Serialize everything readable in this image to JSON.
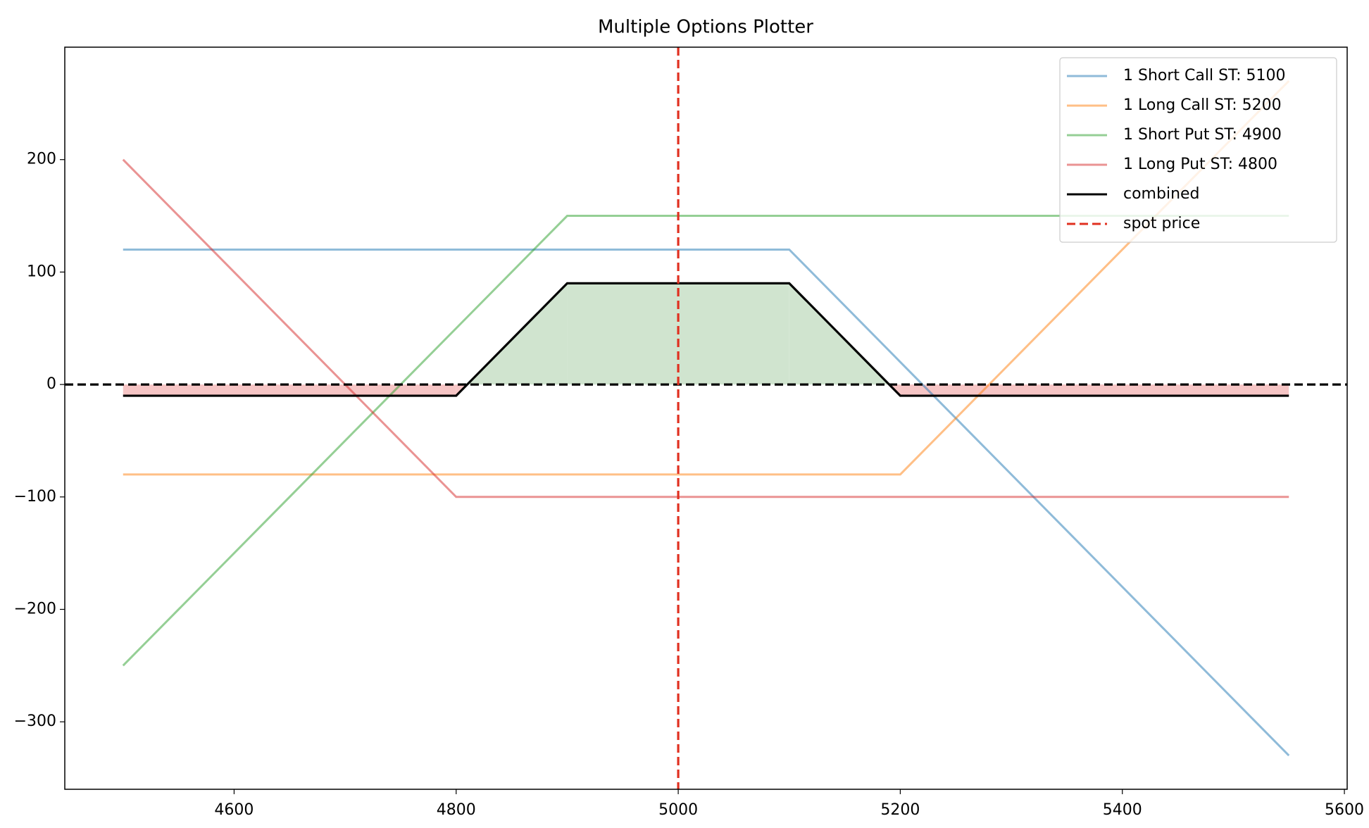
{
  "chart_data": {
    "type": "line",
    "title": "Multiple Options Plotter",
    "x": [
      4500,
      4800,
      4900,
      5000,
      5100,
      5200,
      5550
    ],
    "series": [
      {
        "name": "1 Short Call ST: 5100",
        "color": "#1f77b4",
        "opacity": 0.5,
        "values": [
          120,
          120,
          120,
          120,
          120,
          20,
          -330
        ]
      },
      {
        "name": "1 Long Call ST: 5200",
        "color": "#ff7f0e",
        "opacity": 0.5,
        "values": [
          -80,
          -80,
          -80,
          -80,
          -80,
          -80,
          270
        ]
      },
      {
        "name": "1 Short Put ST: 4900",
        "color": "#2ca02c",
        "opacity": 0.5,
        "values": [
          -250,
          50,
          150,
          150,
          150,
          150,
          150
        ]
      },
      {
        "name": "1 Long Put ST: 4800",
        "color": "#d62728",
        "opacity": 0.5,
        "values": [
          200,
          -100,
          -100,
          -100,
          -100,
          -100,
          -100
        ]
      },
      {
        "name": "combined",
        "color": "#000000",
        "opacity": 1,
        "values": [
          -10,
          -10,
          90,
          90,
          90,
          -10,
          -10
        ]
      }
    ],
    "fill_colors": {
      "profit": "#d0e4cf",
      "loss": "#f6c5c5"
    },
    "spot_price": {
      "name": "spot price",
      "color": "#e03020",
      "x": 5000
    },
    "zero_line": {
      "y": 0,
      "color": "#000000"
    },
    "xlim": [
      4447.5,
      5602.5
    ],
    "ylim": [
      -360,
      300
    ],
    "xticks": [
      4600,
      4800,
      5000,
      5200,
      5400,
      5600
    ],
    "yticks": [
      {
        "value": -300,
        "label": "−300"
      },
      {
        "value": -200,
        "label": "−200"
      },
      {
        "value": -100,
        "label": "−100"
      },
      0,
      100,
      200
    ],
    "legend": "upper right"
  }
}
